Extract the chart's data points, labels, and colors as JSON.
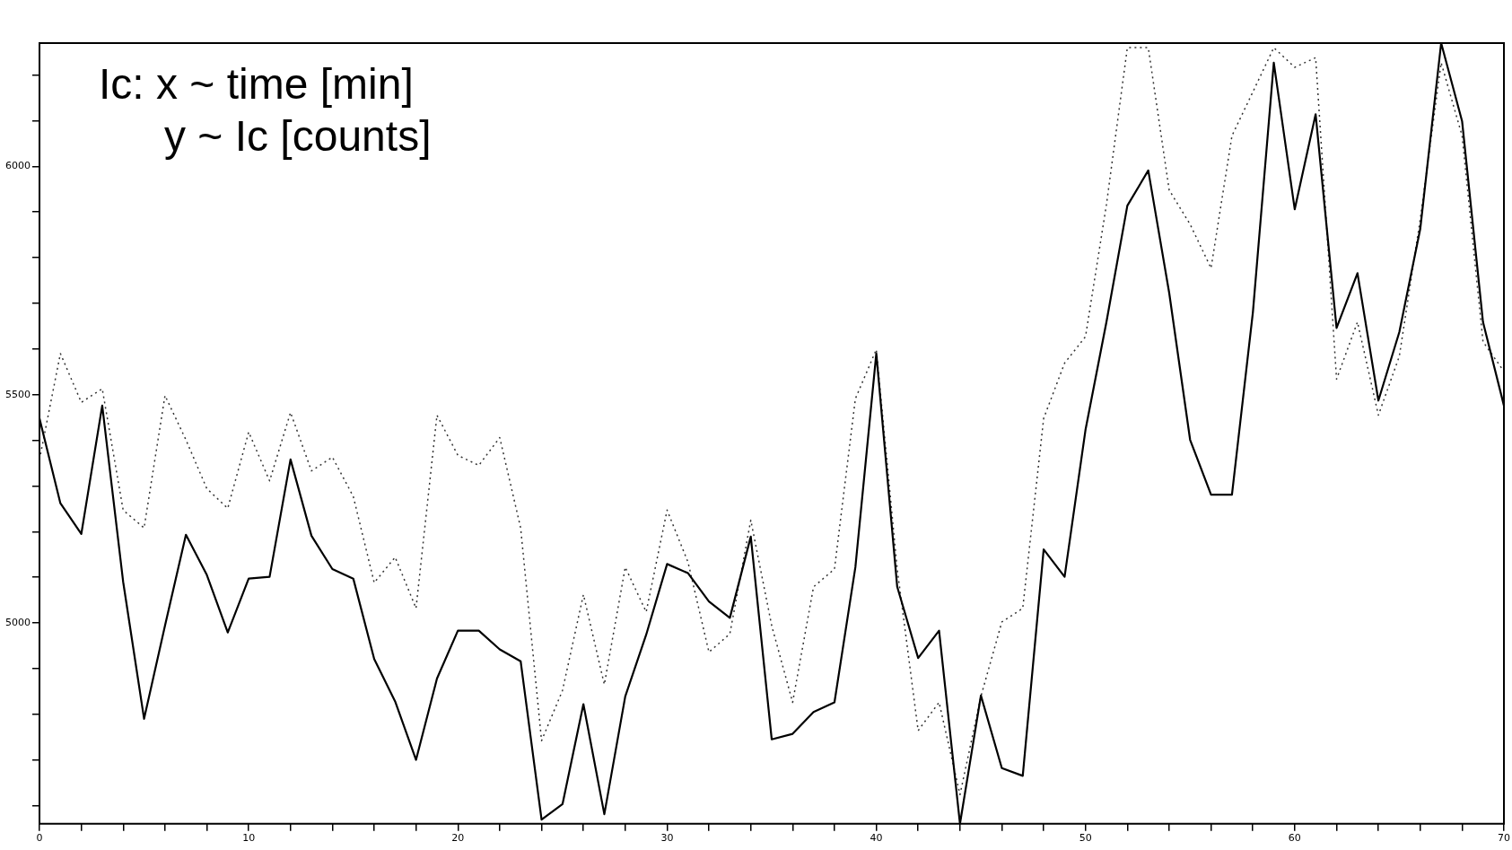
{
  "chart_data": {
    "type": "line",
    "annotations": [
      "Ic: x ~ time [min]",
      "y ~ Ic [counts]"
    ],
    "x": [
      0,
      1,
      2,
      3,
      4,
      5,
      6,
      7,
      8,
      9,
      10,
      11,
      12,
      13,
      14,
      15,
      16,
      17,
      18,
      19,
      20,
      21,
      22,
      23,
      24,
      25,
      26,
      27,
      28,
      29,
      30,
      31,
      32,
      33,
      34,
      35,
      36,
      37,
      38,
      39,
      40,
      41,
      42,
      43,
      44,
      45,
      46,
      47,
      48,
      49,
      50,
      51,
      52,
      53,
      54,
      55,
      56,
      57,
      58,
      59,
      60,
      61,
      62,
      63,
      64,
      65,
      66,
      67,
      68,
      69,
      70
    ],
    "series": [
      {
        "color": "#000000",
        "line_style": "solid",
        "values": [
          5448,
          5262,
          5195,
          5476,
          5090,
          4790,
          4994,
          5193,
          5105,
          4979,
          5097,
          5101,
          5358,
          5191,
          5118,
          5097,
          4921,
          4828,
          4700,
          4878,
          4983,
          4983,
          4942,
          4916,
          4569,
          4603,
          4822,
          4581,
          4839,
          4974,
          5129,
          5109,
          5047,
          5011,
          5189,
          4745,
          4757,
          4805,
          4826,
          5122,
          5590,
          5079,
          4923,
          4983,
          4560,
          4841,
          4682,
          4665,
          5161,
          5101,
          5423,
          5659,
          5914,
          5991,
          5723,
          5401,
          5281,
          5281,
          5680,
          6227,
          5906,
          6114,
          5646,
          5766,
          5487,
          5637,
          5863,
          6270,
          6099,
          5659,
          5476
        ]
      },
      {
        "color": "#333333",
        "line_style": "dotted",
        "values": [
          5358,
          5590,
          5483,
          5513,
          5247,
          5208,
          5498,
          5401,
          5294,
          5251,
          5418,
          5311,
          5461,
          5333,
          5363,
          5277,
          5088,
          5144,
          5032,
          5455,
          5367,
          5345,
          5406,
          5208,
          4742,
          4852,
          5062,
          4865,
          5122,
          5024,
          5247,
          5133,
          4936,
          4976,
          5225,
          4994,
          4826,
          5079,
          5118,
          5491,
          5599,
          5118,
          4764,
          4826,
          4624,
          4839,
          5002,
          5032,
          5448,
          5569,
          5627,
          5916,
          6260,
          6260,
          5948,
          5873,
          5777,
          6067,
          6163,
          6260,
          6217,
          6238,
          5534,
          5659,
          5455,
          5584,
          5884,
          6227,
          6067,
          5616,
          5551
        ]
      }
    ],
    "xlim": [
      0,
      70
    ],
    "xticks": [
      0,
      {
        "value": 2,
        "label": null
      },
      {
        "value": 4,
        "label": null
      },
      {
        "value": 6,
        "label": null
      },
      {
        "value": 8,
        "label": null
      },
      10,
      {
        "value": 12,
        "label": null
      },
      {
        "value": 14,
        "label": null
      },
      {
        "value": 16,
        "label": null
      },
      {
        "value": 18,
        "label": null
      },
      20,
      {
        "value": 22,
        "label": null
      },
      {
        "value": 24,
        "label": null
      },
      {
        "value": 26,
        "label": null
      },
      {
        "value": 28,
        "label": null
      },
      30,
      {
        "value": 32,
        "label": null
      },
      {
        "value": 34,
        "label": null
      },
      {
        "value": 36,
        "label": null
      },
      {
        "value": 38,
        "label": null
      },
      40,
      {
        "value": 42,
        "label": null
      },
      {
        "value": 44,
        "label": null
      },
      {
        "value": 46,
        "label": null
      },
      {
        "value": 48,
        "label": null
      },
      50,
      {
        "value": 52,
        "label": null
      },
      {
        "value": 54,
        "label": null
      },
      {
        "value": 56,
        "label": null
      },
      {
        "value": 58,
        "label": null
      },
      60,
      {
        "value": 62,
        "label": null
      },
      {
        "value": 64,
        "label": null
      },
      {
        "value": 66,
        "label": null
      },
      {
        "value": 68,
        "label": null
      },
      70
    ],
    "ylim": [
      4560,
      6270
    ],
    "yticks": [
      {
        "value": 4600,
        "label": null
      },
      {
        "value": 4700,
        "label": null
      },
      {
        "value": 4800,
        "label": null
      },
      {
        "value": 4900,
        "label": null
      },
      5000,
      {
        "value": 5100,
        "label": null
      },
      {
        "value": 5200,
        "label": null
      },
      {
        "value": 5300,
        "label": null
      },
      {
        "value": 5400,
        "label": null
      },
      5500,
      {
        "value": 5600,
        "label": null
      },
      {
        "value": 5700,
        "label": null
      },
      {
        "value": 5800,
        "label": null
      },
      {
        "value": 5900,
        "label": null
      },
      6000,
      {
        "value": 6100,
        "label": null
      },
      {
        "value": 6200,
        "label": null
      }
    ],
    "grid": false,
    "legend": false,
    "marker": "none"
  }
}
